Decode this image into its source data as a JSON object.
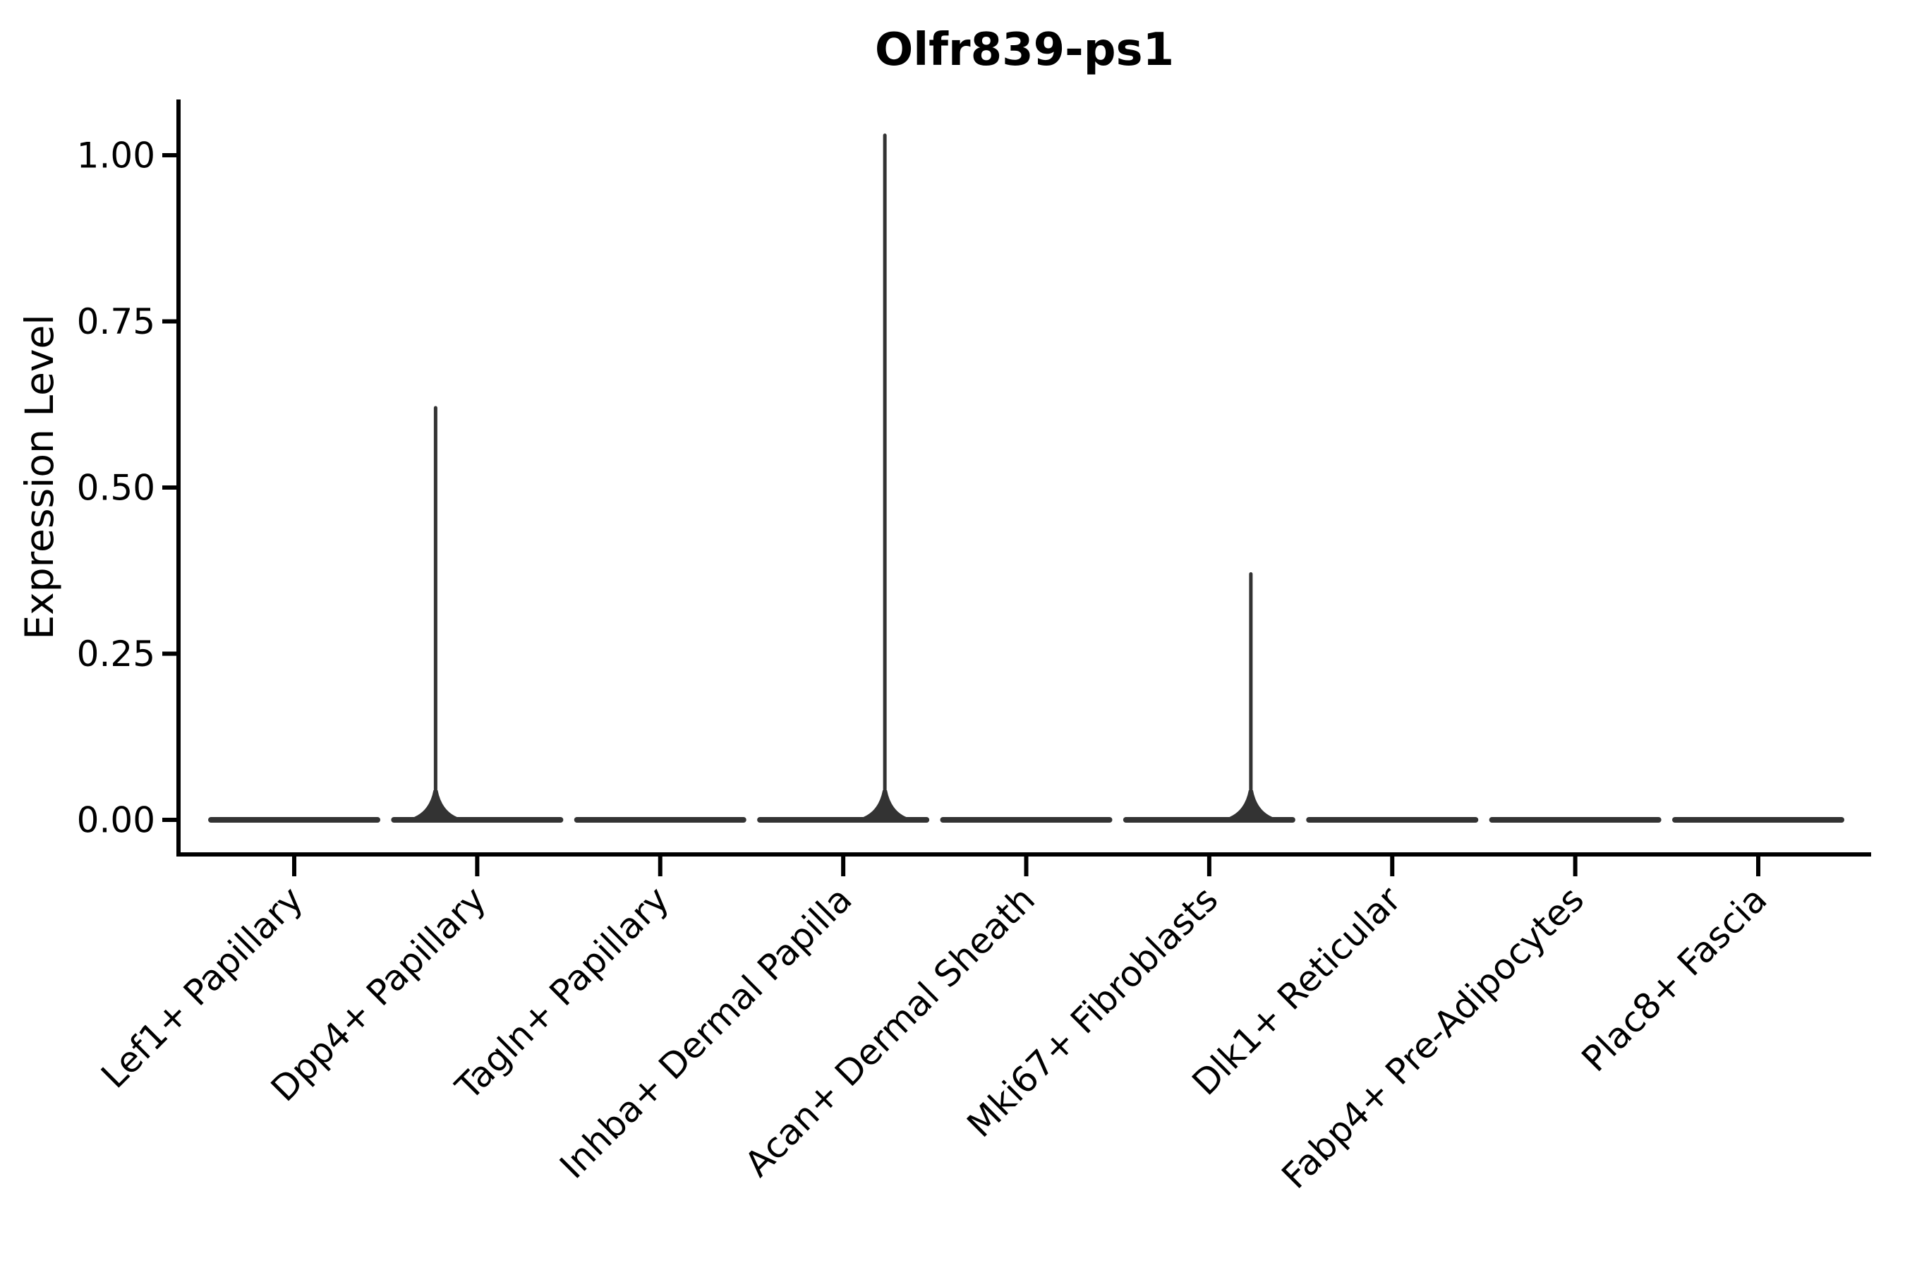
{
  "title": "Olfr839-ps1",
  "chart_data": {
    "type": "violin",
    "title": "Olfr839-ps1",
    "xlabel": "",
    "ylabel": "Expression Level",
    "ylim": [
      0,
      1.08
    ],
    "y_ticks": [
      0.0,
      0.25,
      0.5,
      0.75,
      1.0
    ],
    "y_tick_labels": [
      "0.00",
      "0.25",
      "0.50",
      "0.75",
      "1.00"
    ],
    "grid": false,
    "legend": "none",
    "violin_color": "#333333",
    "axis_color": "#000000",
    "categories": [
      "Lef1+ Papillary",
      "Dpp4+ Papillary",
      "Tagln+ Papillary",
      "Inhba+ Dermal Papilla",
      "Acan+ Dermal Sheath",
      "Mki67+ Fibroblasts",
      "Dlk1+ Reticular",
      "Fabp4+ Pre-Adipocytes",
      "Plac8+ Fascia"
    ],
    "series": [
      {
        "name": "Lef1+ Papillary",
        "bulk_at": 0.0,
        "max_expression": 0.0,
        "spike": false,
        "spike_value": null,
        "spike_offset_frac": 0
      },
      {
        "name": "Dpp4+ Papillary",
        "bulk_at": 0.0,
        "max_expression": 0.62,
        "spike": true,
        "spike_value": 0.62,
        "spike_offset_frac": -0.2275
      },
      {
        "name": "Tagln+ Papillary",
        "bulk_at": 0.0,
        "max_expression": 0.0,
        "spike": false,
        "spike_value": null,
        "spike_offset_frac": 0
      },
      {
        "name": "Inhba+ Dermal Papilla",
        "bulk_at": 0.0,
        "max_expression": 1.03,
        "spike": true,
        "spike_value": 1.03,
        "spike_offset_frac": 0.2275
      },
      {
        "name": "Acan+ Dermal Sheath",
        "bulk_at": 0.0,
        "max_expression": 0.0,
        "spike": false,
        "spike_value": null,
        "spike_offset_frac": 0
      },
      {
        "name": "Mki67+ Fibroblasts",
        "bulk_at": 0.0,
        "max_expression": 0.37,
        "spike": true,
        "spike_value": 0.37,
        "spike_offset_frac": 0.2275
      },
      {
        "name": "Dlk1+ Reticular",
        "bulk_at": 0.0,
        "max_expression": 0.0,
        "spike": false,
        "spike_value": null,
        "spike_offset_frac": 0
      },
      {
        "name": "Fabp4+ Pre-Adipocytes",
        "bulk_at": 0.0,
        "max_expression": 0.0,
        "spike": false,
        "spike_value": null,
        "spike_offset_frac": 0
      },
      {
        "name": "Plac8+ Fascia",
        "bulk_at": 0.0,
        "max_expression": 0.0,
        "spike": false,
        "spike_value": null,
        "spike_offset_frac": 0
      }
    ]
  }
}
